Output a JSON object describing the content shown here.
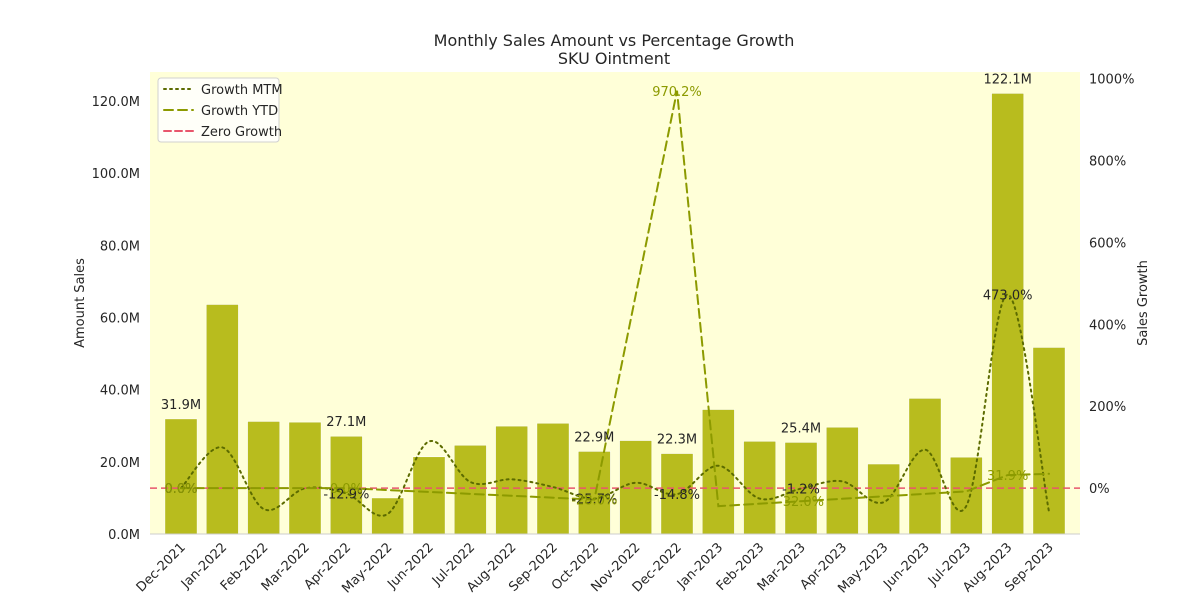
{
  "chart_data": {
    "type": "bar",
    "title": "Monthly Sales Amount vs Percentage Growth",
    "subtitle": "SKU Ointment",
    "xlabel": "",
    "ylabel": "Amount Sales",
    "y2label": "Sales Growth",
    "ylim": [
      0,
      128
    ],
    "y2lim": [
      -112,
      1016
    ],
    "y_ticks": [
      {
        "value": 0,
        "label": "0.0M"
      },
      {
        "value": 20,
        "label": "20.0M"
      },
      {
        "value": 40,
        "label": "40.0M"
      },
      {
        "value": 60,
        "label": "60.0M"
      },
      {
        "value": 80,
        "label": "80.0M"
      },
      {
        "value": 100,
        "label": "100.0M"
      },
      {
        "value": 120,
        "label": "120.0M"
      }
    ],
    "y2_ticks": [
      {
        "value": 0,
        "label": "0%"
      },
      {
        "value": 200,
        "label": "200%"
      },
      {
        "value": 400,
        "label": "400%"
      },
      {
        "value": 600,
        "label": "600%"
      },
      {
        "value": 800,
        "label": "800%"
      },
      {
        "value": 1000,
        "label": "1000%"
      }
    ],
    "categories": [
      "Dec-2021",
      "Jan-2022",
      "Feb-2022",
      "Mar-2022",
      "Apr-2022",
      "May-2022",
      "Jun-2022",
      "Jul-2022",
      "Aug-2022",
      "Sep-2022",
      "Oct-2022",
      "Nov-2022",
      "Dec-2022",
      "Jan-2023",
      "Feb-2023",
      "Mar-2023",
      "Apr-2023",
      "May-2023",
      "Jun-2023",
      "Jul-2023",
      "Aug-2023",
      "Sep-2023"
    ],
    "series": [
      {
        "name": "Amount Sales",
        "kind": "bar",
        "axis": "left",
        "color": "#b8bc1e",
        "values": [
          31.9,
          63.6,
          31.2,
          31.0,
          27.1,
          10.0,
          21.4,
          24.6,
          29.9,
          30.7,
          22.9,
          25.9,
          22.3,
          34.5,
          25.7,
          25.4,
          29.6,
          19.4,
          37.6,
          21.3,
          122.1,
          51.7
        ]
      },
      {
        "name": "Growth MTM",
        "kind": "line",
        "axis": "right",
        "color": "#5c6b00",
        "dash": "dotted",
        "values": [
          0.0,
          99.4,
          -51.0,
          -0.6,
          -12.9,
          -63.1,
          114.0,
          15.0,
          21.5,
          2.7,
          -25.7,
          13.1,
          -14.8,
          54.7,
          -25.5,
          -1.2,
          16.5,
          -34.5,
          93.8,
          -43.4,
          473.0,
          -57.7
        ]
      },
      {
        "name": "Growth YTD",
        "kind": "line",
        "axis": "right",
        "color": "#8c9a00",
        "dash": "dashed",
        "values": [
          0.0,
          null,
          null,
          null,
          0.0,
          null,
          null,
          null,
          null,
          null,
          -28.0,
          null,
          970.2,
          -44.0,
          null,
          -32.0,
          null,
          null,
          null,
          -8.0,
          31.9,
          35.0
        ]
      },
      {
        "name": "Zero Growth",
        "kind": "hline",
        "axis": "right",
        "color": "#e8566c",
        "dash": "dashed",
        "value": 0
      }
    ],
    "bar_labels": [
      {
        "index": 0,
        "text": "31.9M"
      },
      {
        "index": 4,
        "text": "27.1M"
      },
      {
        "index": 10,
        "text": "22.9M"
      },
      {
        "index": 12,
        "text": "22.3M"
      },
      {
        "index": 15,
        "text": "25.4M"
      },
      {
        "index": 20,
        "text": "122.1M"
      }
    ],
    "growth_labels": [
      {
        "index": 0,
        "series": "Growth MTM",
        "text": "0.0%"
      },
      {
        "index": 0,
        "series": "Growth YTD",
        "text": "0.0%"
      },
      {
        "index": 4,
        "series": "Growth MTM",
        "text": "-12.9%"
      },
      {
        "index": 4,
        "series": "Growth YTD",
        "text": "0.0%"
      },
      {
        "index": 10,
        "series": "Growth MTM",
        "text": "-25.7%"
      },
      {
        "index": 10,
        "series": "Growth YTD",
        "text": "-28.0%"
      },
      {
        "index": 12,
        "series": "Growth MTM",
        "text": "-14.8%"
      },
      {
        "index": 12,
        "series": "Growth YTD",
        "text": "970.2%"
      },
      {
        "index": 15,
        "series": "Growth MTM",
        "text": "-1.2%"
      },
      {
        "index": 15,
        "series": "Growth YTD",
        "text": "-32.0%"
      },
      {
        "index": 20,
        "series": "Growth MTM",
        "text": "473.0%"
      },
      {
        "index": 20,
        "series": "Growth YTD",
        "text": "31.9%"
      }
    ],
    "legend": {
      "position": "top-left",
      "entries": [
        "Growth MTM",
        "Growth YTD",
        "Zero Growth"
      ]
    },
    "grid": false,
    "plot_background": "#ffffd8"
  }
}
